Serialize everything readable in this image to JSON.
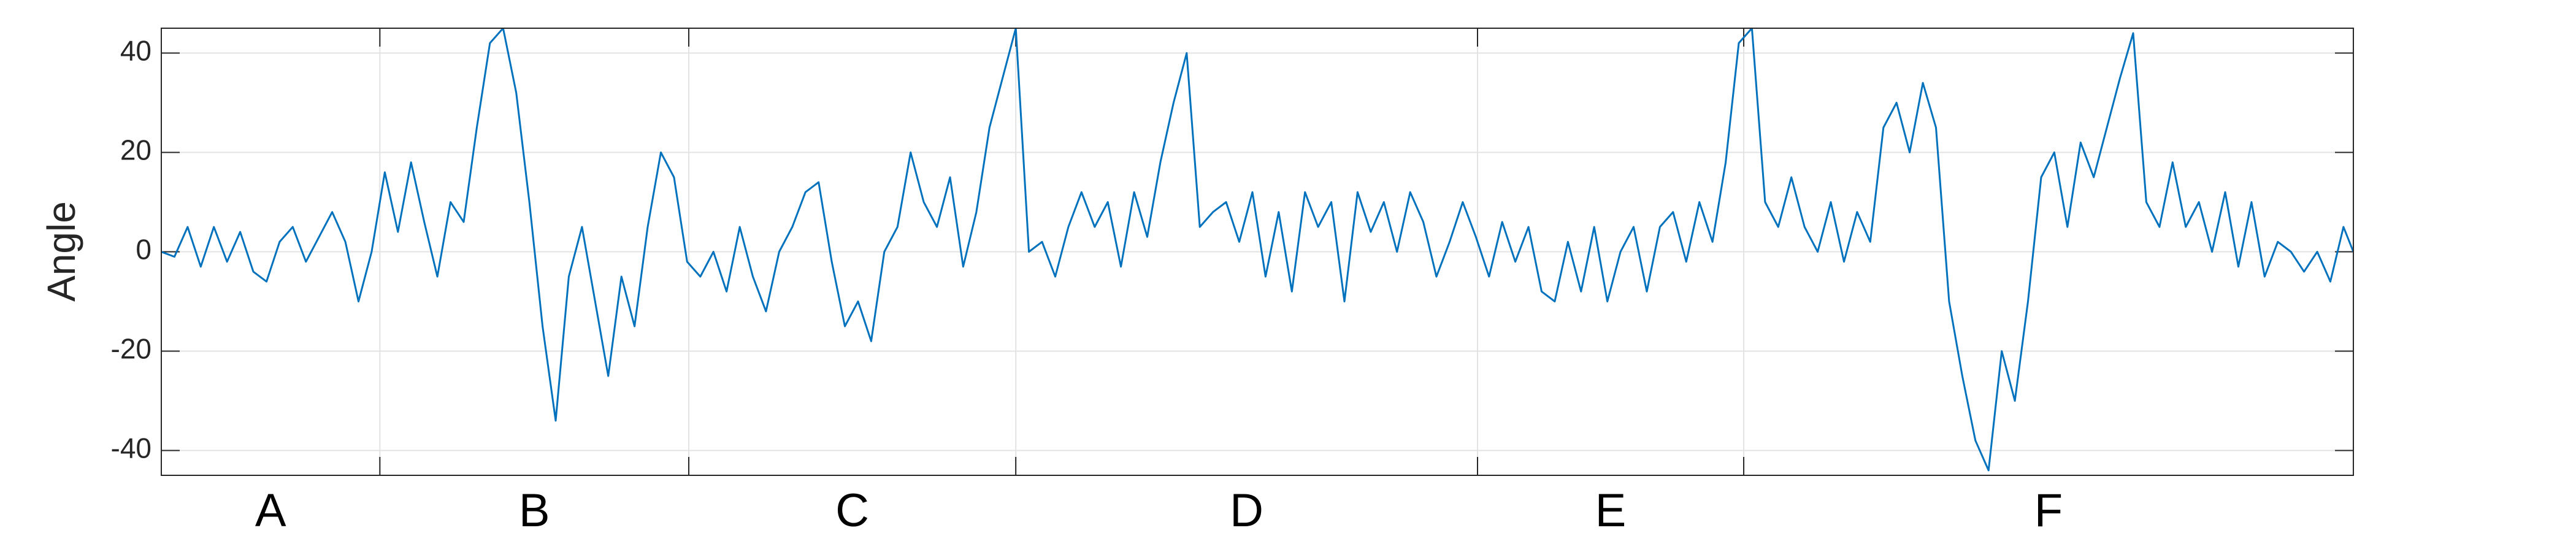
{
  "chart_data": {
    "type": "line",
    "y_label": "Angle",
    "segments": [
      "A",
      "B",
      "C",
      "D",
      "E",
      "F"
    ],
    "xlim": [
      0,
      1334
    ],
    "xticks": [
      133,
      321,
      520,
      801,
      963
    ],
    "ylim": [
      -45,
      45
    ],
    "yticks": [
      -40,
      -20,
      0,
      20,
      40
    ],
    "grid": true,
    "color": "#0072bd",
    "x": [
      0,
      8,
      16,
      24,
      32,
      40,
      48,
      56,
      64,
      72,
      80,
      88,
      96,
      104,
      112,
      120,
      128,
      136,
      144,
      152,
      160,
      168,
      176,
      184,
      192,
      200,
      208,
      216,
      224,
      232,
      240,
      248,
      256,
      264,
      272,
      280,
      288,
      296,
      304,
      312,
      320,
      328,
      336,
      344,
      352,
      360,
      368,
      376,
      384,
      392,
      400,
      408,
      416,
      424,
      432,
      440,
      448,
      456,
      464,
      472,
      480,
      488,
      496,
      504,
      512,
      520,
      528,
      536,
      544,
      552,
      560,
      568,
      576,
      584,
      592,
      600,
      608,
      616,
      624,
      632,
      640,
      648,
      656,
      664,
      672,
      680,
      688,
      696,
      704,
      712,
      720,
      728,
      736,
      744,
      752,
      760,
      768,
      776,
      784,
      792,
      800,
      808,
      816,
      824,
      832,
      840,
      848,
      856,
      864,
      872,
      880,
      888,
      896,
      904,
      912,
      920,
      928,
      936,
      944,
      952,
      960,
      968,
      976,
      984,
      992,
      1000,
      1008,
      1016,
      1024,
      1032,
      1040,
      1048,
      1056,
      1064,
      1072,
      1080,
      1088,
      1096,
      1104,
      1112,
      1120,
      1128,
      1136,
      1144,
      1152,
      1160,
      1168,
      1176,
      1184,
      1192,
      1200,
      1208,
      1216,
      1224,
      1232,
      1240,
      1248,
      1256,
      1264,
      1272,
      1280,
      1288,
      1296,
      1304,
      1312,
      1320,
      1328,
      1334
    ],
    "values": [
      0,
      -1,
      5,
      -3,
      5,
      -2,
      4,
      -4,
      -6,
      2,
      5,
      -2,
      3,
      8,
      2,
      -10,
      0,
      16,
      4,
      18,
      6,
      -5,
      10,
      6,
      25,
      42,
      45,
      32,
      10,
      -15,
      -34,
      -5,
      5,
      -10,
      -25,
      -5,
      -15,
      5,
      20,
      15,
      -2,
      -5,
      0,
      -8,
      5,
      -5,
      -12,
      0,
      5,
      12,
      14,
      -2,
      -15,
      -10,
      -18,
      0,
      5,
      20,
      10,
      5,
      15,
      -3,
      8,
      25,
      35,
      45,
      0,
      2,
      -5,
      5,
      12,
      5,
      10,
      -3,
      12,
      3,
      18,
      30,
      40,
      5,
      8,
      10,
      2,
      12,
      -5,
      8,
      -8,
      12,
      5,
      10,
      -10,
      12,
      4,
      10,
      0,
      12,
      6,
      -5,
      2,
      10,
      3,
      -5,
      6,
      -2,
      5,
      -8,
      -10,
      2,
      -8,
      5,
      -10,
      0,
      5,
      -8,
      5,
      8,
      -2,
      10,
      2,
      18,
      42,
      45,
      10,
      5,
      15,
      5,
      0,
      10,
      -2,
      8,
      2,
      25,
      30,
      20,
      34,
      25,
      -10,
      -25,
      -38,
      -44,
      -20,
      -30,
      -10,
      15,
      20,
      5,
      22,
      15,
      25,
      35,
      44,
      10,
      5,
      18,
      5,
      10,
      0,
      12,
      -3,
      10,
      -5,
      2,
      0,
      -4,
      0,
      -6,
      5,
      0
    ]
  }
}
